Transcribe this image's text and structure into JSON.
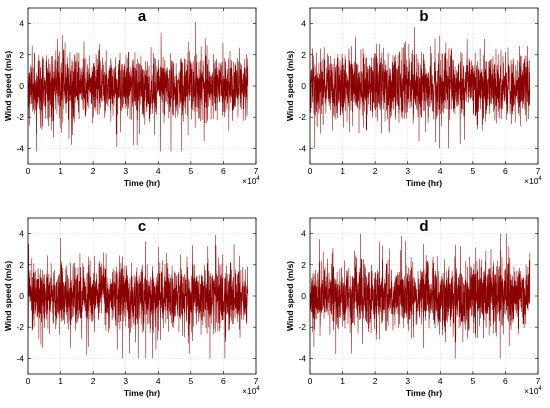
{
  "chart_data": [
    {
      "type": "line",
      "panel_label": "a",
      "xlabel": "Time (hr)",
      "ylabel": "Wind speed (m/s)",
      "x_multiplier": "×10",
      "x_multiplier_exponent": "4",
      "xlim": [
        0,
        7
      ],
      "ylim": [
        -5,
        5
      ],
      "xticks": [
        "0",
        "1",
        "2",
        "3",
        "4",
        "5",
        "6",
        "7"
      ],
      "yticks": [
        "-4",
        "-2",
        "0",
        "2",
        "4"
      ],
      "x_range": [
        0,
        67500
      ],
      "y_range": [
        -4.2,
        4.1
      ],
      "grid": true,
      "color": "#8b0000",
      "series": [
        {
          "x": [
            0,
            7500,
            15000,
            22500,
            30000,
            37500,
            45000,
            52500,
            60000,
            67500
          ],
          "y": [
            0.1,
            -0.3,
            0.2,
            -0.1,
            0.3,
            0.0,
            -0.2,
            0.1,
            -0.1,
            0.2
          ]
        }
      ]
    },
    {
      "type": "line",
      "panel_label": "b",
      "xlabel": "Time (hr)",
      "ylabel": "Wind speed (m/s)",
      "x_multiplier": "×10",
      "x_multiplier_exponent": "4",
      "xlim": [
        0,
        7
      ],
      "ylim": [
        -5,
        5
      ],
      "xticks": [
        "0",
        "1",
        "2",
        "3",
        "4",
        "5",
        "6",
        "7"
      ],
      "yticks": [
        "-4",
        "-2",
        "0",
        "2",
        "4"
      ],
      "x_range": [
        0,
        67500
      ],
      "y_range": [
        -4.0,
        4.0
      ],
      "grid": true,
      "color": "#8b0000",
      "series": [
        {
          "x": [
            0,
            7500,
            15000,
            22500,
            30000,
            37500,
            45000,
            52500,
            60000,
            67500
          ],
          "y": [
            0.0,
            0.2,
            -0.2,
            0.1,
            -0.3,
            0.2,
            0.0,
            -0.1,
            0.2,
            -0.1
          ]
        }
      ]
    },
    {
      "type": "line",
      "panel_label": "c",
      "xlabel": "Time (hr)",
      "ylabel": "Wind speed (m/s)",
      "x_multiplier": "×10",
      "x_multiplier_exponent": "4",
      "xlim": [
        0,
        7
      ],
      "ylim": [
        -5,
        5
      ],
      "xticks": [
        "0",
        "1",
        "2",
        "3",
        "4",
        "5",
        "6",
        "7"
      ],
      "yticks": [
        "-4",
        "-2",
        "0",
        "2",
        "4"
      ],
      "x_range": [
        0,
        67500
      ],
      "y_range": [
        -4.0,
        3.9
      ],
      "grid": true,
      "color": "#8b0000",
      "series": [
        {
          "x": [
            0,
            7500,
            15000,
            22500,
            30000,
            37500,
            45000,
            52500,
            60000,
            67500
          ],
          "y": [
            -0.1,
            0.2,
            0.0,
            -0.2,
            0.1,
            0.3,
            -0.1,
            0.0,
            0.2,
            -0.2
          ]
        }
      ]
    },
    {
      "type": "line",
      "panel_label": "d",
      "xlabel": "Time (hr)",
      "ylabel": "Wind speed (m/s)",
      "x_multiplier": "×10",
      "x_multiplier_exponent": "4",
      "xlim": [
        0,
        7
      ],
      "ylim": [
        -5,
        5
      ],
      "xticks": [
        "0",
        "1",
        "2",
        "3",
        "4",
        "5",
        "6",
        "7"
      ],
      "yticks": [
        "-4",
        "-2",
        "0",
        "2",
        "4"
      ],
      "x_range": [
        0,
        67500
      ],
      "y_range": [
        -4.0,
        4.0
      ],
      "grid": true,
      "color": "#8b0000",
      "series": [
        {
          "x": [
            0,
            7500,
            15000,
            22500,
            30000,
            37500,
            45000,
            52500,
            60000,
            67500
          ],
          "y": [
            0.2,
            -0.1,
            0.1,
            0.0,
            -0.2,
            0.1,
            0.2,
            -0.1,
            0.0,
            0.1
          ]
        }
      ]
    }
  ]
}
